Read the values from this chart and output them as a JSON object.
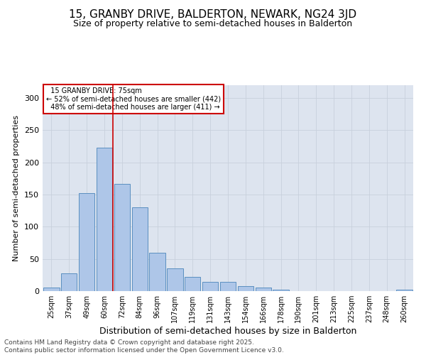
{
  "title1": "15, GRANBY DRIVE, BALDERTON, NEWARK, NG24 3JD",
  "title2": "Size of property relative to semi-detached houses in Balderton",
  "xlabel": "Distribution of semi-detached houses by size in Balderton",
  "ylabel": "Number of semi-detached properties",
  "categories": [
    "25sqm",
    "37sqm",
    "49sqm",
    "60sqm",
    "72sqm",
    "84sqm",
    "96sqm",
    "107sqm",
    "119sqm",
    "131sqm",
    "143sqm",
    "154sqm",
    "166sqm",
    "178sqm",
    "190sqm",
    "201sqm",
    "213sqm",
    "225sqm",
    "237sqm",
    "248sqm",
    "260sqm"
  ],
  "values": [
    5,
    28,
    152,
    223,
    167,
    130,
    60,
    35,
    22,
    14,
    14,
    8,
    6,
    2,
    0,
    0,
    0,
    0,
    0,
    0,
    2
  ],
  "bar_color": "#aec6e8",
  "bar_edge_color": "#5a8fc0",
  "vline_x": 3.5,
  "subject_label": "15 GRANBY DRIVE: 75sqm",
  "subject_pct_smaller": "52%",
  "subject_smaller_count": 442,
  "subject_pct_larger": "48%",
  "subject_larger_count": 411,
  "annotation_box_color": "#cc0000",
  "vline_color": "#cc0000",
  "ylim": [
    0,
    320
  ],
  "yticks": [
    0,
    50,
    100,
    150,
    200,
    250,
    300
  ],
  "grid_color": "#c8d0dc",
  "background_color": "#dde4ef",
  "footnote": "Contains HM Land Registry data © Crown copyright and database right 2025.\nContains public sector information licensed under the Open Government Licence v3.0.",
  "title1_fontsize": 11,
  "title2_fontsize": 9,
  "xlabel_fontsize": 9,
  "ylabel_fontsize": 8,
  "tick_fontsize": 7,
  "footnote_fontsize": 6.5
}
